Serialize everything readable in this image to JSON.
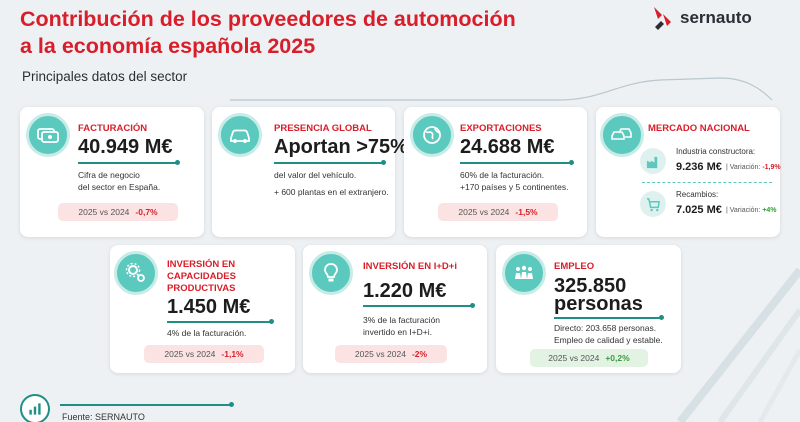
{
  "header": {
    "title_line1": "Contribución de los proveedores de automoción",
    "title_line2": "a la economía española 2025",
    "subtitle": "Principales datos del sector",
    "logo_text": "sernauto"
  },
  "cards": {
    "facturacion": {
      "label": "FACTURACIÓN",
      "value": "40.949 M€",
      "desc1": "Cifra de negocio",
      "desc2": "del sector en España.",
      "compare": "2025 vs 2024",
      "change": "-0,7%",
      "icon": "money-icon"
    },
    "presencia": {
      "label": "PRESENCIA GLOBAL",
      "value": "Aportan >75%",
      "desc1": "del valor del vehículo.",
      "desc2": "+ 600 plantas en el extranjero.",
      "icon": "car-icon"
    },
    "exportaciones": {
      "label": "EXPORTACIONES",
      "value": "24.688 M€",
      "desc1": "60% de la facturación.",
      "desc2": "+170 países y 5 continentes.",
      "compare": "2025 vs 2024",
      "change": "-1,5%",
      "icon": "globe-icon"
    },
    "mercado": {
      "label": "MERCADO NACIONAL",
      "icon": "cars-icon",
      "industria_label": "Industria constructora:",
      "industria_value": "9.236 M€",
      "industria_var_label": "Variación:",
      "industria_var": "-1,9%",
      "recambios_label": "Recambios:",
      "recambios_value": "7.025 M€",
      "recambios_var_label": "Variación:",
      "recambios_var": "+4%"
    },
    "inversion_cap": {
      "label1": "INVERSIÓN EN",
      "label2": "CAPACIDADES",
      "label3": "PRODUCTIVAS",
      "value": "1.450 M€",
      "desc1": "4% de la facturación.",
      "compare": "2025 vs 2024",
      "change": "-1,1%",
      "icon": "gears-icon"
    },
    "inversion_idi": {
      "label": "INVERSIÓN EN I+D+i",
      "value": "1.220 M€",
      "desc1": "3% de la facturación",
      "desc2": "invertido en I+D+i.",
      "compare": "2025 vs 2024",
      "change": "-2%",
      "icon": "lightbulb-icon"
    },
    "empleo": {
      "label": "EMPLEO",
      "value1": "325.850",
      "value2": "personas",
      "desc1": "Directo: 203.658 personas.",
      "desc2": "Empleo de calidad y estable.",
      "compare": "2025 vs 2024",
      "change": "+0,2%",
      "icon": "people-icon"
    }
  },
  "footer": {
    "source": "Fuente: SERNAUTO",
    "icon": "bar-chart-icon"
  },
  "colors": {
    "accent_red": "#d81e2a",
    "teal": "#5cc9be",
    "dark_teal": "#1f8f86",
    "positive_green": "#3a9a3f"
  }
}
